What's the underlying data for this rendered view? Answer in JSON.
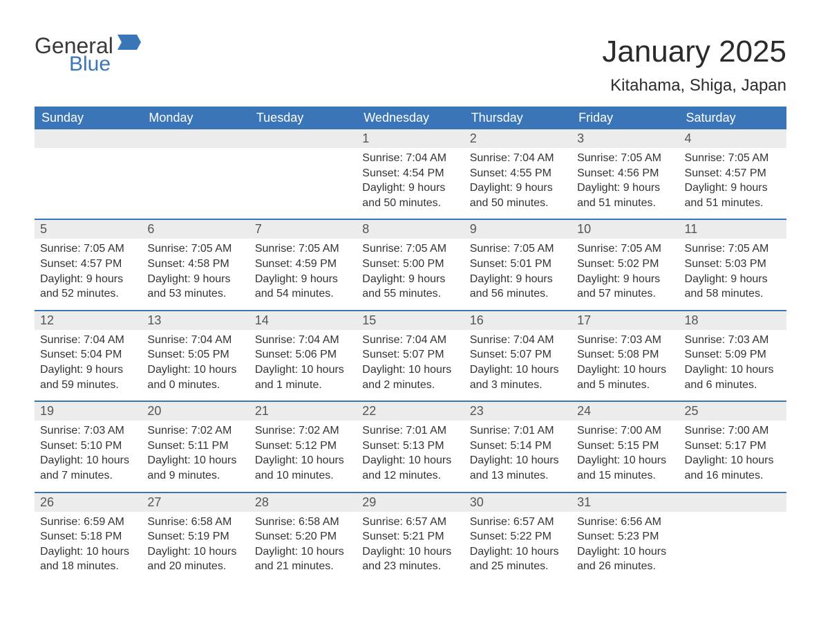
{
  "brand": {
    "word1": "General",
    "word2": "Blue",
    "flag_color": "#3a76b7",
    "text_color": "#3a3a3a"
  },
  "title": "January 2025",
  "location": "Kitahama, Shiga, Japan",
  "title_fontsize": 44,
  "location_fontsize": 24,
  "colors": {
    "header_bg": "#3a76b7",
    "header_text": "#ffffff",
    "daynum_bg": "#ececec",
    "daynum_text": "#555555",
    "body_text": "#333333",
    "week_border": "#3a76b7",
    "background": "#ffffff"
  },
  "weekday_fontsize": 18,
  "daynum_fontsize": 18,
  "daydata_fontsize": 16,
  "weekdays": [
    "Sunday",
    "Monday",
    "Tuesday",
    "Wednesday",
    "Thursday",
    "Friday",
    "Saturday"
  ],
  "weeks": [
    [
      {
        "blank": true
      },
      {
        "blank": true
      },
      {
        "blank": true
      },
      {
        "day": "1",
        "sunrise": "Sunrise: 7:04 AM",
        "sunset": "Sunset: 4:54 PM",
        "dl1": "Daylight: 9 hours",
        "dl2": "and 50 minutes."
      },
      {
        "day": "2",
        "sunrise": "Sunrise: 7:04 AM",
        "sunset": "Sunset: 4:55 PM",
        "dl1": "Daylight: 9 hours",
        "dl2": "and 50 minutes."
      },
      {
        "day": "3",
        "sunrise": "Sunrise: 7:05 AM",
        "sunset": "Sunset: 4:56 PM",
        "dl1": "Daylight: 9 hours",
        "dl2": "and 51 minutes."
      },
      {
        "day": "4",
        "sunrise": "Sunrise: 7:05 AM",
        "sunset": "Sunset: 4:57 PM",
        "dl1": "Daylight: 9 hours",
        "dl2": "and 51 minutes."
      }
    ],
    [
      {
        "day": "5",
        "sunrise": "Sunrise: 7:05 AM",
        "sunset": "Sunset: 4:57 PM",
        "dl1": "Daylight: 9 hours",
        "dl2": "and 52 minutes."
      },
      {
        "day": "6",
        "sunrise": "Sunrise: 7:05 AM",
        "sunset": "Sunset: 4:58 PM",
        "dl1": "Daylight: 9 hours",
        "dl2": "and 53 minutes."
      },
      {
        "day": "7",
        "sunrise": "Sunrise: 7:05 AM",
        "sunset": "Sunset: 4:59 PM",
        "dl1": "Daylight: 9 hours",
        "dl2": "and 54 minutes."
      },
      {
        "day": "8",
        "sunrise": "Sunrise: 7:05 AM",
        "sunset": "Sunset: 5:00 PM",
        "dl1": "Daylight: 9 hours",
        "dl2": "and 55 minutes."
      },
      {
        "day": "9",
        "sunrise": "Sunrise: 7:05 AM",
        "sunset": "Sunset: 5:01 PM",
        "dl1": "Daylight: 9 hours",
        "dl2": "and 56 minutes."
      },
      {
        "day": "10",
        "sunrise": "Sunrise: 7:05 AM",
        "sunset": "Sunset: 5:02 PM",
        "dl1": "Daylight: 9 hours",
        "dl2": "and 57 minutes."
      },
      {
        "day": "11",
        "sunrise": "Sunrise: 7:05 AM",
        "sunset": "Sunset: 5:03 PM",
        "dl1": "Daylight: 9 hours",
        "dl2": "and 58 minutes."
      }
    ],
    [
      {
        "day": "12",
        "sunrise": "Sunrise: 7:04 AM",
        "sunset": "Sunset: 5:04 PM",
        "dl1": "Daylight: 9 hours",
        "dl2": "and 59 minutes."
      },
      {
        "day": "13",
        "sunrise": "Sunrise: 7:04 AM",
        "sunset": "Sunset: 5:05 PM",
        "dl1": "Daylight: 10 hours",
        "dl2": "and 0 minutes."
      },
      {
        "day": "14",
        "sunrise": "Sunrise: 7:04 AM",
        "sunset": "Sunset: 5:06 PM",
        "dl1": "Daylight: 10 hours",
        "dl2": "and 1 minute."
      },
      {
        "day": "15",
        "sunrise": "Sunrise: 7:04 AM",
        "sunset": "Sunset: 5:07 PM",
        "dl1": "Daylight: 10 hours",
        "dl2": "and 2 minutes."
      },
      {
        "day": "16",
        "sunrise": "Sunrise: 7:04 AM",
        "sunset": "Sunset: 5:07 PM",
        "dl1": "Daylight: 10 hours",
        "dl2": "and 3 minutes."
      },
      {
        "day": "17",
        "sunrise": "Sunrise: 7:03 AM",
        "sunset": "Sunset: 5:08 PM",
        "dl1": "Daylight: 10 hours",
        "dl2": "and 5 minutes."
      },
      {
        "day": "18",
        "sunrise": "Sunrise: 7:03 AM",
        "sunset": "Sunset: 5:09 PM",
        "dl1": "Daylight: 10 hours",
        "dl2": "and 6 minutes."
      }
    ],
    [
      {
        "day": "19",
        "sunrise": "Sunrise: 7:03 AM",
        "sunset": "Sunset: 5:10 PM",
        "dl1": "Daylight: 10 hours",
        "dl2": "and 7 minutes."
      },
      {
        "day": "20",
        "sunrise": "Sunrise: 7:02 AM",
        "sunset": "Sunset: 5:11 PM",
        "dl1": "Daylight: 10 hours",
        "dl2": "and 9 minutes."
      },
      {
        "day": "21",
        "sunrise": "Sunrise: 7:02 AM",
        "sunset": "Sunset: 5:12 PM",
        "dl1": "Daylight: 10 hours",
        "dl2": "and 10 minutes."
      },
      {
        "day": "22",
        "sunrise": "Sunrise: 7:01 AM",
        "sunset": "Sunset: 5:13 PM",
        "dl1": "Daylight: 10 hours",
        "dl2": "and 12 minutes."
      },
      {
        "day": "23",
        "sunrise": "Sunrise: 7:01 AM",
        "sunset": "Sunset: 5:14 PM",
        "dl1": "Daylight: 10 hours",
        "dl2": "and 13 minutes."
      },
      {
        "day": "24",
        "sunrise": "Sunrise: 7:00 AM",
        "sunset": "Sunset: 5:15 PM",
        "dl1": "Daylight: 10 hours",
        "dl2": "and 15 minutes."
      },
      {
        "day": "25",
        "sunrise": "Sunrise: 7:00 AM",
        "sunset": "Sunset: 5:17 PM",
        "dl1": "Daylight: 10 hours",
        "dl2": "and 16 minutes."
      }
    ],
    [
      {
        "day": "26",
        "sunrise": "Sunrise: 6:59 AM",
        "sunset": "Sunset: 5:18 PM",
        "dl1": "Daylight: 10 hours",
        "dl2": "and 18 minutes."
      },
      {
        "day": "27",
        "sunrise": "Sunrise: 6:58 AM",
        "sunset": "Sunset: 5:19 PM",
        "dl1": "Daylight: 10 hours",
        "dl2": "and 20 minutes."
      },
      {
        "day": "28",
        "sunrise": "Sunrise: 6:58 AM",
        "sunset": "Sunset: 5:20 PM",
        "dl1": "Daylight: 10 hours",
        "dl2": "and 21 minutes."
      },
      {
        "day": "29",
        "sunrise": "Sunrise: 6:57 AM",
        "sunset": "Sunset: 5:21 PM",
        "dl1": "Daylight: 10 hours",
        "dl2": "and 23 minutes."
      },
      {
        "day": "30",
        "sunrise": "Sunrise: 6:57 AM",
        "sunset": "Sunset: 5:22 PM",
        "dl1": "Daylight: 10 hours",
        "dl2": "and 25 minutes."
      },
      {
        "day": "31",
        "sunrise": "Sunrise: 6:56 AM",
        "sunset": "Sunset: 5:23 PM",
        "dl1": "Daylight: 10 hours",
        "dl2": "and 26 minutes."
      },
      {
        "blank": true
      }
    ]
  ]
}
